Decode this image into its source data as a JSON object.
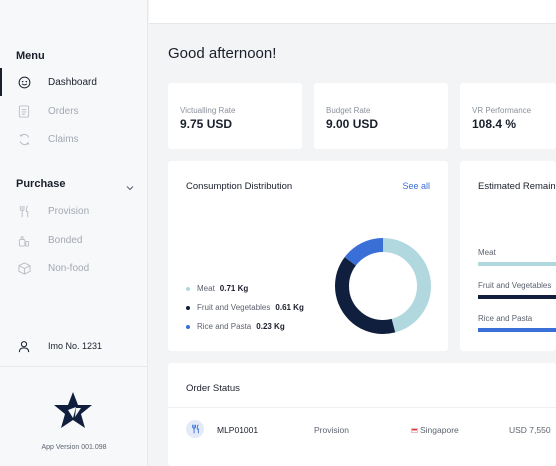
{
  "sidebar": {
    "menu_title": "Menu",
    "menu_items": [
      {
        "label": "Dashboard",
        "icon": "dashboard-icon",
        "active": true
      },
      {
        "label": "Orders",
        "icon": "orders-icon",
        "active": false
      },
      {
        "label": "Claims",
        "icon": "claims-icon",
        "active": false
      }
    ],
    "purchase_title": "Purchase",
    "purchase_items": [
      {
        "label": "Provision",
        "icon": "provision-icon"
      },
      {
        "label": "Bonded",
        "icon": "bonded-icon"
      },
      {
        "label": "Non-food",
        "icon": "non-food-icon"
      }
    ],
    "user_label": "Imo No. 1231",
    "app_version": "App Version 001.098"
  },
  "greeting": "Good afternoon!",
  "stats": [
    {
      "label": "Victualling Rate",
      "value": "9.75 USD"
    },
    {
      "label": "Budget Rate",
      "value": "9.00 USD"
    },
    {
      "label": "VR Performance",
      "value": "108.4 %"
    }
  ],
  "consumption": {
    "title": "Consumption Distribution",
    "see_all": "See all",
    "items": [
      {
        "name": "Meat",
        "value": "0.71 Kg",
        "color": "#b2d8df"
      },
      {
        "name": "Fruit and Vegetables",
        "value": "0.61 Kg",
        "color": "#0f1f3d"
      },
      {
        "name": "Rice and Pasta",
        "value": "0.23 Kg",
        "color": "#3b6fd8"
      }
    ]
  },
  "chart_data": {
    "type": "pie",
    "title": "Consumption Distribution",
    "categories": [
      "Meat",
      "Fruit and Vegetables",
      "Rice and Pasta"
    ],
    "values": [
      0.71,
      0.61,
      0.23
    ],
    "unit": "Kg",
    "colors": [
      "#b2d8df",
      "#0f1f3d",
      "#3b6fd8"
    ],
    "legend": "left"
  },
  "remaining": {
    "title": "Estimated Remaining",
    "items": [
      {
        "name": "Meat",
        "color": "#b2d8df"
      },
      {
        "name": "Fruit and Vegetables",
        "color": "#0f1f3d"
      },
      {
        "name": "Rice and Pasta",
        "color": "#3b6fd8"
      }
    ]
  },
  "order_status": {
    "title": "Order Status",
    "rows": [
      {
        "id": "MLP01001",
        "type": "Provision",
        "port": "Singapore",
        "amount": "USD 7,550"
      }
    ]
  }
}
